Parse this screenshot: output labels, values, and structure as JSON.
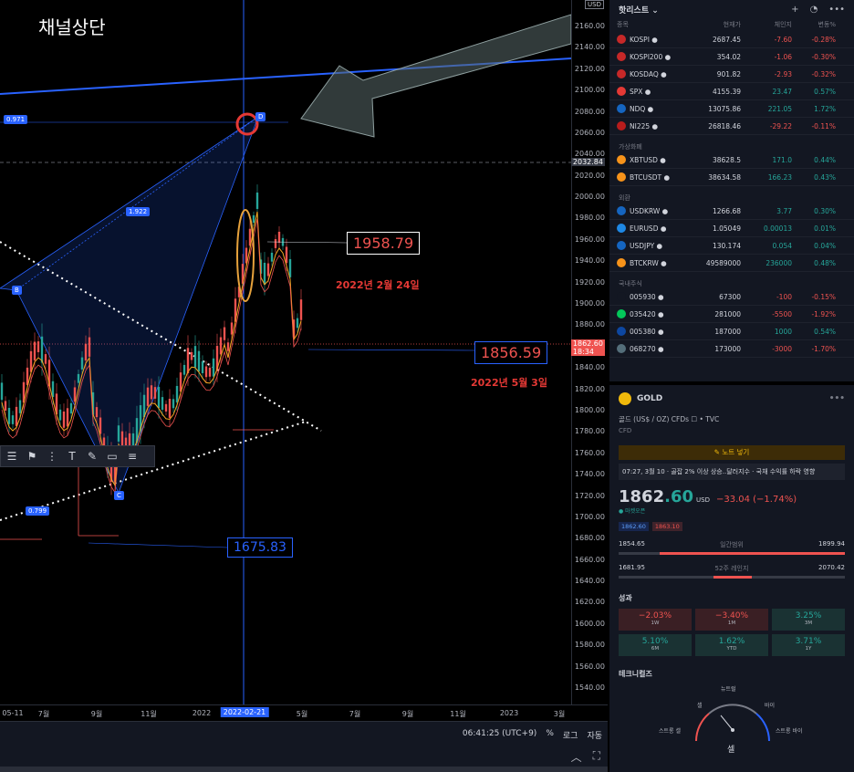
{
  "overlay": {
    "title": "채널상단",
    "label_high": "1958.79",
    "label_low": "1675.83",
    "label_now": "1856.59",
    "date_high": "2022년 2월 24일",
    "date_now": "2022년 5월 3일",
    "fib_top": "0.971",
    "fib_mid": "1.922",
    "fib_low": "0.799",
    "point_b": "B",
    "point_c": "C",
    "point_d": "D"
  },
  "price_axis": {
    "currency": "USD",
    "ticks": [
      "2160.00",
      "2140.00",
      "2120.00",
      "2100.00",
      "2080.00",
      "2060.00",
      "2040.00",
      "2020.00",
      "2000.00",
      "1980.00",
      "1960.00",
      "1940.00",
      "1920.00",
      "1900.00",
      "1880.00",
      "1860.00",
      "1840.00",
      "1820.00",
      "1800.00",
      "1780.00",
      "1760.00",
      "1740.00",
      "1720.00",
      "1700.00",
      "1680.00",
      "1660.00",
      "1640.00",
      "1620.00",
      "1600.00",
      "1580.00",
      "1560.00",
      "1540.00"
    ],
    "crosshair_price": "2032.84",
    "last_price": "1862.60",
    "countdown": "18:34"
  },
  "time_axis": {
    "ticks": [
      "05-11",
      "7월",
      "9월",
      "11월",
      "2022",
      "2022-02-21",
      "5월",
      "7월",
      "9월",
      "11월",
      "2023",
      "3월"
    ]
  },
  "status": {
    "time": "06:41:25 (UTC+9)",
    "pct": "%",
    "log": "로그",
    "auto": "자동"
  },
  "watchlist": {
    "title": "핫리스트",
    "columns": [
      "종목",
      "현재가",
      "체인지",
      "변동%"
    ],
    "groups": [
      {
        "label": "",
        "rows": [
          {
            "sym": "KOSPI",
            "last": "2687.45",
            "chg": "-7.60",
            "pct": "-0.28%",
            "dir": "dn",
            "color": "#c62828"
          },
          {
            "sym": "KOSPI200",
            "last": "354.02",
            "chg": "-1.06",
            "pct": "-0.30%",
            "dir": "dn",
            "color": "#c62828"
          },
          {
            "sym": "KOSDAQ",
            "last": "901.82",
            "chg": "-2.93",
            "pct": "-0.32%",
            "dir": "dn",
            "color": "#c62828"
          },
          {
            "sym": "SPX",
            "last": "4155.39",
            "chg": "23.47",
            "pct": "0.57%",
            "dir": "up",
            "color": "#e53935"
          },
          {
            "sym": "NDQ",
            "last": "13075.86",
            "chg": "221.05",
            "pct": "1.72%",
            "dir": "up",
            "color": "#1565c0"
          },
          {
            "sym": "NI225",
            "last": "26818.46",
            "chg": "-29.22",
            "pct": "-0.11%",
            "dir": "dn",
            "color": "#b71c1c"
          }
        ]
      },
      {
        "label": "가상화폐",
        "rows": [
          {
            "sym": "XBTUSD",
            "last": "38628.5",
            "chg": "171.0",
            "pct": "0.44%",
            "dir": "up",
            "color": "#f7931a"
          },
          {
            "sym": "BTCUSDT",
            "last": "38634.58",
            "chg": "166.23",
            "pct": "0.43%",
            "dir": "up",
            "color": "#f7931a"
          }
        ]
      },
      {
        "label": "외환",
        "rows": [
          {
            "sym": "USDKRW",
            "last": "1266.68",
            "chg": "3.77",
            "pct": "0.30%",
            "dir": "up",
            "color": "#1565c0"
          },
          {
            "sym": "EURUSD",
            "last": "1.05049",
            "chg": "0.00013",
            "pct": "0.01%",
            "dir": "up",
            "color": "#1e88e5"
          },
          {
            "sym": "USDJPY",
            "last": "130.174",
            "chg": "0.054",
            "pct": "0.04%",
            "dir": "up",
            "color": "#1565c0"
          },
          {
            "sym": "BTCKRW",
            "last": "49589000",
            "chg": "236000",
            "pct": "0.48%",
            "dir": "up",
            "color": "#f7931a"
          }
        ]
      },
      {
        "label": "국내주식",
        "rows": [
          {
            "sym": "005930",
            "last": "67300",
            "chg": "-100",
            "pct": "-0.15%",
            "dir": "dn",
            "color": "#131722"
          },
          {
            "sym": "035420",
            "last": "281000",
            "chg": "-5500",
            "pct": "-1.92%",
            "dir": "dn",
            "color": "#03c75a"
          },
          {
            "sym": "005380",
            "last": "187000",
            "chg": "1000",
            "pct": "0.54%",
            "dir": "up",
            "color": "#0d47a1"
          },
          {
            "sym": "068270",
            "last": "173000",
            "chg": "-3000",
            "pct": "-1.70%",
            "dir": "dn",
            "color": "#546e7a"
          }
        ]
      }
    ]
  },
  "detail": {
    "symbol": "GOLD",
    "desc": "골드 (US$ / OZ) CFDs ☐ • TVC",
    "subdesc": "CFD",
    "note_btn": "노트 넣기",
    "news": "07:27, 3월 10 · 골잡 2% 이상 상승..달러지수 · 국채 수익률 하락 영향",
    "price_main": "1862",
    "price_dec": ".60",
    "currency": "USD",
    "change": "−33.04 (−1.74%)",
    "market": "● 마켓오픈",
    "bid": "1862.60",
    "ask": "1863.10",
    "day_low": "1854.65",
    "day_label": "일간범위",
    "day_high": "1899.94",
    "wk_low": "1681.95",
    "wk_label": "52주 레인지",
    "wk_high": "2070.42",
    "perf_title": "성과",
    "perf": [
      {
        "v": "−2.03%",
        "l": "1W",
        "s": "neg"
      },
      {
        "v": "−3.40%",
        "l": "1M",
        "s": "neg"
      },
      {
        "v": "3.25%",
        "l": "3M",
        "s": "pos"
      },
      {
        "v": "5.10%",
        "l": "6M",
        "s": "pos"
      },
      {
        "v": "1.62%",
        "l": "YTD",
        "s": "pos"
      },
      {
        "v": "3.71%",
        "l": "1Y",
        "s": "pos"
      }
    ],
    "tech_title": "테크니컬즈",
    "gauge": {
      "neutral": "뉴트럴",
      "sell": "셀",
      "buy": "바이",
      "strong_sell": "스트롱 셀",
      "strong_buy": "스트롱 바이",
      "result": "셀"
    }
  }
}
